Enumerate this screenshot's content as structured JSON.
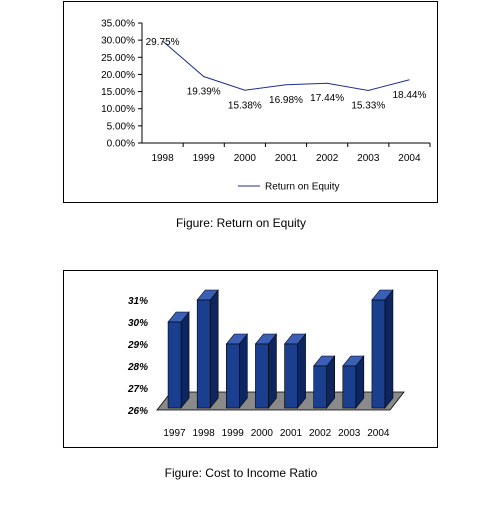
{
  "chart_data": [
    {
      "type": "line",
      "title": "",
      "xlabel": "",
      "ylabel": "",
      "categories": [
        "1998",
        "1999",
        "2000",
        "2001",
        "2002",
        "2003",
        "2004"
      ],
      "series": [
        {
          "name": "Return on Equity",
          "values": [
            29.75,
            19.39,
            15.38,
            16.98,
            17.44,
            15.33,
            18.44
          ]
        }
      ],
      "data_labels": [
        "29.75%",
        "19.39%",
        "15.38%",
        "16.98%",
        "17.44%",
        "15.33%",
        "18.44%"
      ],
      "ylim": [
        0,
        35
      ],
      "yticks": [
        "0.00%",
        "5.00%",
        "10.00%",
        "15.00%",
        "20.00%",
        "25.00%",
        "30.00%",
        "35.00%"
      ],
      "legend": "bottom",
      "line_color": "#1f2f8f",
      "grid": false
    },
    {
      "type": "bar",
      "title": "",
      "xlabel": "",
      "ylabel": "",
      "categories": [
        "1997",
        "1998",
        "1999",
        "2000",
        "2001",
        "2002",
        "2003",
        "2004"
      ],
      "values": [
        30,
        31,
        29,
        29,
        29,
        28,
        28,
        31
      ],
      "ylim": [
        26,
        31
      ],
      "yticks": [
        "26%",
        "27%",
        "28%",
        "29%",
        "30%",
        "31%"
      ],
      "style": "3d",
      "bar_color": "#1b3f8f",
      "floor_color": "#8a8a8a",
      "grid": false
    }
  ],
  "captions": {
    "roe": "Figure: Return on Equity",
    "cir": "Figure: Cost to Income Ratio"
  }
}
